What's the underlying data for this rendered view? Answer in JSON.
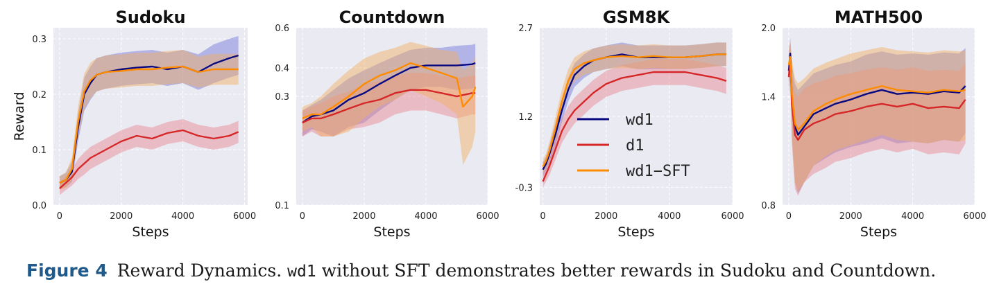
{
  "colors": {
    "wd1": "#0a0a80",
    "d1": "#d62728",
    "wd1-SFT": "#ff8c00",
    "wd1_band": "#6f70d6",
    "d1_band": "#e8858d",
    "wd1-SFT_band": "#f2b060",
    "plot_bg": "#eaeaf2",
    "grid": "#ffffff"
  },
  "legend": {
    "location": "center",
    "in_panel": 2,
    "entries": [
      "wd1",
      "d1",
      "wd1−SFT"
    ]
  },
  "caption": {
    "label": "Figure 4",
    "text_1": "Reward Dynamics.",
    "code": "wd1",
    "text_2": "without SFT demonstrates better rewards in Sudoku and Countdown."
  },
  "chart_data": [
    {
      "type": "line",
      "title": "Sudoku",
      "xlabel": "Steps",
      "ylabel": "Reward",
      "xlim": [
        -200,
        6100
      ],
      "ylim": [
        0.0,
        0.32
      ],
      "xticks": [
        0,
        2000,
        4000,
        6000
      ],
      "yticks": [
        0.0,
        0.1,
        0.2,
        0.3
      ],
      "ytick_labels": [
        "0.0",
        "0.1",
        "0.2",
        "0.3"
      ],
      "grid": true,
      "series": [
        {
          "name": "wd1",
          "x": [
            0,
            200,
            400,
            600,
            800,
            1000,
            1200,
            1500,
            2000,
            2500,
            3000,
            3500,
            4000,
            4500,
            5000,
            5500,
            5800
          ],
          "y": [
            0.04,
            0.045,
            0.06,
            0.14,
            0.2,
            0.22,
            0.235,
            0.24,
            0.245,
            0.248,
            0.25,
            0.245,
            0.25,
            0.24,
            0.255,
            0.265,
            0.27
          ],
          "band": [
            0.012,
            0.013,
            0.018,
            0.025,
            0.03,
            0.03,
            0.03,
            0.03,
            0.03,
            0.03,
            0.03,
            0.03,
            0.03,
            0.032,
            0.035,
            0.035,
            0.035
          ]
        },
        {
          "name": "d1",
          "x": [
            0,
            200,
            400,
            600,
            800,
            1000,
            1500,
            2000,
            2500,
            3000,
            3500,
            4000,
            4500,
            5000,
            5500,
            5800
          ],
          "y": [
            0.03,
            0.04,
            0.05,
            0.065,
            0.075,
            0.085,
            0.1,
            0.115,
            0.125,
            0.12,
            0.13,
            0.135,
            0.125,
            0.12,
            0.125,
            0.132
          ],
          "band": [
            0.012,
            0.013,
            0.015,
            0.018,
            0.02,
            0.02,
            0.02,
            0.02,
            0.02,
            0.02,
            0.02,
            0.02,
            0.02,
            0.02,
            0.02,
            0.02
          ]
        },
        {
          "name": "wd1−SFT",
          "x": [
            0,
            200,
            400,
            600,
            800,
            1000,
            1200,
            1500,
            2000,
            2500,
            3000,
            3500,
            4000,
            4500,
            5000,
            5500,
            5800
          ],
          "y": [
            0.04,
            0.045,
            0.065,
            0.15,
            0.205,
            0.225,
            0.235,
            0.24,
            0.242,
            0.245,
            0.245,
            0.248,
            0.25,
            0.24,
            0.245,
            0.245,
            0.245
          ],
          "band": [
            0.012,
            0.014,
            0.02,
            0.028,
            0.032,
            0.032,
            0.03,
            0.03,
            0.03,
            0.03,
            0.03,
            0.03,
            0.03,
            0.028,
            0.028,
            0.028,
            0.028
          ]
        }
      ]
    },
    {
      "type": "line",
      "title": "Countdown",
      "xlabel": "Steps",
      "ylabel": "",
      "xlim": [
        -200,
        6000
      ],
      "ylim": [
        0.1,
        0.6
      ],
      "yscale": "log",
      "xticks": [
        0,
        2000,
        4000,
        6000
      ],
      "yticks": [
        0.1,
        0.3,
        0.4,
        0.6
      ],
      "ytick_labels": [
        "0.1",
        "0.3",
        "0.4",
        "0.6"
      ],
      "grid": true,
      "series": [
        {
          "name": "wd1",
          "x": [
            0,
            300,
            600,
            1000,
            1500,
            2000,
            2500,
            3000,
            3500,
            4000,
            4500,
            5000,
            5500,
            5600
          ],
          "y": [
            0.23,
            0.245,
            0.25,
            0.26,
            0.29,
            0.31,
            0.34,
            0.37,
            0.4,
            0.41,
            0.41,
            0.41,
            0.415,
            0.42
          ],
          "band": [
            0.03,
            0.03,
            0.04,
            0.06,
            0.07,
            0.08,
            0.08,
            0.08,
            0.08,
            0.08,
            0.08,
            0.09,
            0.09,
            0.09
          ]
        },
        {
          "name": "d1",
          "x": [
            0,
            300,
            600,
            1000,
            1500,
            2000,
            2500,
            3000,
            3500,
            4000,
            4500,
            5000,
            5500,
            5600
          ],
          "y": [
            0.23,
            0.24,
            0.24,
            0.25,
            0.265,
            0.28,
            0.29,
            0.31,
            0.32,
            0.32,
            0.31,
            0.3,
            0.31,
            0.31
          ],
          "band": [
            0.03,
            0.03,
            0.04,
            0.05,
            0.05,
            0.06,
            0.06,
            0.06,
            0.06,
            0.06,
            0.06,
            0.06,
            0.06,
            0.06
          ]
        },
        {
          "name": "wd1−SFT",
          "x": [
            0,
            300,
            600,
            1000,
            1500,
            2000,
            2500,
            3000,
            3500,
            4000,
            4500,
            5000,
            5200,
            5500,
            5600
          ],
          "y": [
            0.24,
            0.25,
            0.25,
            0.27,
            0.3,
            0.34,
            0.37,
            0.39,
            0.42,
            0.4,
            0.38,
            0.36,
            0.27,
            0.3,
            0.33
          ],
          "band": [
            0.03,
            0.03,
            0.05,
            0.07,
            0.09,
            0.1,
            0.1,
            0.1,
            0.1,
            0.1,
            0.1,
            0.11,
            0.12,
            0.12,
            0.12
          ]
        }
      ]
    },
    {
      "type": "line",
      "title": "GSM8K",
      "xlabel": "Steps",
      "ylabel": "",
      "xlim": [
        -100,
        6000
      ],
      "ylim": [
        -0.3,
        2.7
      ],
      "xticks": [
        0,
        2000,
        4000,
        6000
      ],
      "yticks": [
        -0.3,
        1.2,
        2.7
      ],
      "ytick_labels": [
        "-0.3",
        "1.2",
        "2.7"
      ],
      "grid": true,
      "series": [
        {
          "name": "wd1",
          "x": [
            0,
            100,
            200,
            400,
            600,
            800,
            1000,
            1300,
            1600,
            2000,
            2500,
            3000,
            3500,
            4000,
            4500,
            5000,
            5500,
            5800
          ],
          "y": [
            0.3,
            0.4,
            0.55,
            0.9,
            1.3,
            1.65,
            1.9,
            2.05,
            2.15,
            2.2,
            2.25,
            2.2,
            2.2,
            2.2,
            2.2,
            2.22,
            2.25,
            2.25
          ],
          "band": [
            0.12,
            0.12,
            0.15,
            0.2,
            0.2,
            0.2,
            0.2,
            0.2,
            0.2,
            0.2,
            0.2,
            0.2,
            0.2,
            0.2,
            0.2,
            0.2,
            0.2,
            0.2
          ]
        },
        {
          "name": "d1",
          "x": [
            0,
            200,
            400,
            600,
            800,
            1000,
            1300,
            1600,
            2000,
            2500,
            3000,
            3500,
            4000,
            4500,
            5000,
            5500,
            5800
          ],
          "y": [
            0.1,
            0.35,
            0.65,
            0.95,
            1.15,
            1.3,
            1.45,
            1.6,
            1.75,
            1.85,
            1.9,
            1.95,
            1.95,
            1.95,
            1.9,
            1.85,
            1.8
          ],
          "band": [
            0.12,
            0.15,
            0.18,
            0.2,
            0.22,
            0.22,
            0.22,
            0.22,
            0.22,
            0.22,
            0.22,
            0.22,
            0.22,
            0.22,
            0.22,
            0.22,
            0.22
          ]
        },
        {
          "name": "wd1−SFT",
          "x": [
            0,
            100,
            200,
            400,
            600,
            800,
            1000,
            1300,
            1600,
            2000,
            2500,
            3000,
            3500,
            4000,
            4500,
            5000,
            5500,
            5800
          ],
          "y": [
            0.35,
            0.45,
            0.6,
            1.0,
            1.45,
            1.8,
            2.0,
            2.1,
            2.15,
            2.2,
            2.22,
            2.2,
            2.22,
            2.2,
            2.2,
            2.22,
            2.25,
            2.25
          ],
          "band": [
            0.12,
            0.12,
            0.15,
            0.2,
            0.2,
            0.2,
            0.2,
            0.2,
            0.2,
            0.2,
            0.2,
            0.2,
            0.2,
            0.2,
            0.2,
            0.2,
            0.2,
            0.2
          ]
        }
      ]
    },
    {
      "type": "line",
      "title": "MATH500",
      "xlabel": "Steps",
      "ylabel": "",
      "xlim": [
        -200,
        6000
      ],
      "ylim": [
        0.8,
        2.0
      ],
      "yscale": "log",
      "xticks": [
        0,
        2000,
        4000,
        6000
      ],
      "yticks": [
        0.8,
        1.4,
        2.0
      ],
      "ytick_labels": [
        "0.8",
        "1.4",
        "2.0"
      ],
      "grid": true,
      "series": [
        {
          "name": "wd1",
          "x": [
            0,
            50,
            100,
            200,
            300,
            500,
            800,
            1200,
            1500,
            2000,
            2500,
            3000,
            3500,
            4000,
            4500,
            5000,
            5500,
            5700
          ],
          "y": [
            1.6,
            1.75,
            1.4,
            1.2,
            1.15,
            1.2,
            1.28,
            1.32,
            1.35,
            1.38,
            1.42,
            1.45,
            1.42,
            1.43,
            1.42,
            1.44,
            1.43,
            1.48
          ],
          "band": [
            0.15,
            0.15,
            0.25,
            0.3,
            0.3,
            0.3,
            0.3,
            0.3,
            0.3,
            0.3,
            0.32,
            0.32,
            0.32,
            0.32,
            0.32,
            0.32,
            0.32,
            0.32
          ]
        },
        {
          "name": "d1",
          "x": [
            0,
            50,
            100,
            200,
            300,
            500,
            800,
            1200,
            1500,
            2000,
            2500,
            3000,
            3500,
            4000,
            4500,
            5000,
            5500,
            5700
          ],
          "y": [
            1.55,
            1.7,
            1.35,
            1.15,
            1.12,
            1.18,
            1.22,
            1.25,
            1.28,
            1.3,
            1.33,
            1.35,
            1.33,
            1.35,
            1.32,
            1.33,
            1.32,
            1.38
          ],
          "band": [
            0.15,
            0.15,
            0.25,
            0.28,
            0.28,
            0.28,
            0.28,
            0.28,
            0.28,
            0.28,
            0.28,
            0.28,
            0.28,
            0.28,
            0.28,
            0.28,
            0.28,
            0.28
          ]
        },
        {
          "name": "wd1−SFT",
          "x": [
            0,
            50,
            100,
            200,
            300,
            500,
            800,
            1200,
            1500,
            2000,
            2500,
            3000,
            3500,
            4000,
            4500,
            5000,
            5500,
            5700
          ],
          "y": [
            1.65,
            1.72,
            1.42,
            1.22,
            1.18,
            1.22,
            1.3,
            1.35,
            1.38,
            1.42,
            1.45,
            1.48,
            1.45,
            1.44,
            1.43,
            1.45,
            1.44,
            1.45
          ],
          "band": [
            0.15,
            0.15,
            0.28,
            0.32,
            0.32,
            0.32,
            0.32,
            0.32,
            0.32,
            0.33,
            0.33,
            0.33,
            0.33,
            0.33,
            0.33,
            0.33,
            0.33,
            0.33
          ]
        }
      ]
    }
  ]
}
